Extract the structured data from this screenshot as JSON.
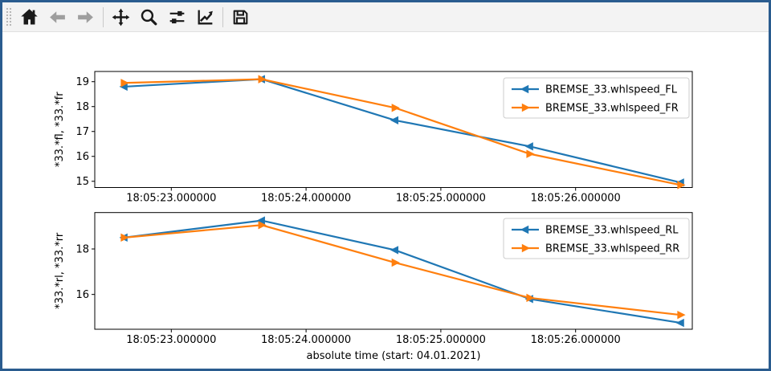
{
  "window": {
    "border_color": "#2a5c8f",
    "background": "#ffffff"
  },
  "toolbar": {
    "background": "#f3f3f3",
    "buttons": [
      {
        "id": "home",
        "icon": "home-icon",
        "enabled": true
      },
      {
        "id": "back",
        "icon": "back-arrow-icon",
        "enabled": false
      },
      {
        "id": "forward",
        "icon": "forward-arrow-icon",
        "enabled": false
      },
      {
        "id": "sep1",
        "separator": true
      },
      {
        "id": "pan",
        "icon": "pan-arrows-icon",
        "enabled": true
      },
      {
        "id": "zoom",
        "icon": "zoom-magnifier-icon",
        "enabled": true
      },
      {
        "id": "subplots",
        "icon": "sliders-icon",
        "enabled": true
      },
      {
        "id": "customize",
        "icon": "line-chart-icon",
        "enabled": true
      },
      {
        "id": "sep2",
        "separator": true
      },
      {
        "id": "save",
        "icon": "save-floppy-icon",
        "enabled": true
      }
    ]
  },
  "chart_data": [
    {
      "type": "line",
      "title": "",
      "x_unit": "seconds after 18:05:00",
      "x": [
        22.65,
        23.67,
        24.66,
        25.66,
        26.78
      ],
      "series": [
        {
          "name": "BREMSE_33.whlspeed_FL",
          "color": "#1f77b4",
          "marker": "left-triangle",
          "values": [
            18.8,
            19.1,
            17.45,
            16.4,
            14.95
          ]
        },
        {
          "name": "BREMSE_33.whlspeed_FR",
          "color": "#ff7f0e",
          "marker": "right-triangle",
          "values": [
            18.95,
            19.1,
            17.95,
            16.1,
            14.85
          ]
        }
      ],
      "ylabel": "*33.*fl, *33.*fr",
      "xlabel": "",
      "yticks": [
        15,
        16,
        17,
        18,
        19
      ],
      "xticks": [
        {
          "value": 23,
          "label": "18:05:23.000000"
        },
        {
          "value": 24,
          "label": "18:05:24.000000"
        },
        {
          "value": 25,
          "label": "18:05:25.000000"
        },
        {
          "value": 26,
          "label": "18:05:26.000000"
        }
      ],
      "xlim": [
        22.432,
        26.866
      ],
      "ylim": [
        14.75,
        19.41
      ],
      "grid": false,
      "legend_position": "upper right"
    },
    {
      "type": "line",
      "title": "",
      "x_unit": "seconds after 18:05:00",
      "x": [
        22.65,
        23.67,
        24.66,
        25.66,
        26.78
      ],
      "series": [
        {
          "name": "BREMSE_33.whlspeed_RL",
          "color": "#1f77b4",
          "marker": "left-triangle",
          "values": [
            18.5,
            19.25,
            17.95,
            15.8,
            14.75
          ]
        },
        {
          "name": "BREMSE_33.whlspeed_RR",
          "color": "#ff7f0e",
          "marker": "right-triangle",
          "values": [
            18.5,
            19.05,
            17.4,
            15.85,
            15.1
          ]
        }
      ],
      "ylabel": "*33.*rl, *33.*rr",
      "xlabel": "absolute time (start: 04.01.2021)",
      "yticks": [
        16,
        18
      ],
      "xticks": [
        {
          "value": 23,
          "label": "18:05:23.000000"
        },
        {
          "value": 24,
          "label": "18:05:24.000000"
        },
        {
          "value": 25,
          "label": "18:05:25.000000"
        },
        {
          "value": 26,
          "label": "18:05:26.000000"
        }
      ],
      "xlim": [
        22.432,
        26.866
      ],
      "ylim": [
        14.47,
        19.6
      ],
      "grid": false,
      "legend_position": "upper right"
    }
  ]
}
